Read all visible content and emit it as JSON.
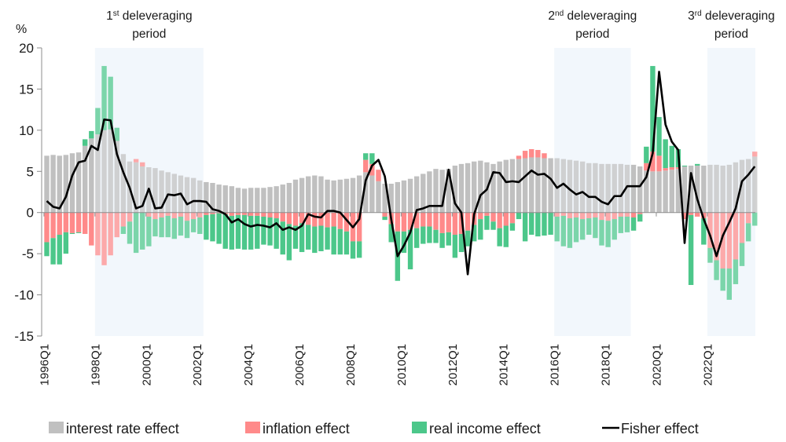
{
  "chart_data": {
    "type": "bar",
    "subtype": "stacked-bar-with-line",
    "ylabel": "%",
    "ylim": [
      -15,
      20
    ],
    "yticks": [
      20,
      15,
      10,
      5,
      0,
      -5,
      -10,
      -15
    ],
    "grid": false,
    "legend_position": "bottom",
    "x_tick_labels": [
      "1996Q1",
      "1998Q1",
      "2000Q1",
      "2002Q1",
      "2004Q1",
      "2006Q1",
      "2008Q1",
      "2010Q1",
      "2012Q1",
      "2014Q1",
      "2016Q1",
      "2018Q1",
      "2020Q1",
      "2022Q1"
    ],
    "start_quarter": "1996Q1",
    "end_quarter": "2023Q4",
    "periods": [
      {
        "label_ordinal": "1",
        "label_sup": "st",
        "label_line1": "deleveraging",
        "label_line2": "period",
        "start": "1998Q1",
        "end": "2002Q1"
      },
      {
        "label_ordinal": "2",
        "label_sup": "nd",
        "label_line1": "deleveraging",
        "label_line2": "period",
        "start": "2016Q1",
        "end": "2018Q4"
      },
      {
        "label_ordinal": "3",
        "label_sup": "rd",
        "label_line1": "deleveraging",
        "label_line2": "period",
        "start": "2022Q1",
        "end": "2023Q4"
      }
    ],
    "series": [
      {
        "name": "interest rate effect",
        "kind": "bar",
        "color": "#c0c0c0",
        "values": [
          6.9,
          7.0,
          6.9,
          7.0,
          7.2,
          7.3,
          8.1,
          9.0,
          9.5,
          10.0,
          10.1,
          8.7,
          7.1,
          6.2,
          6.1,
          5.6,
          5.5,
          5.4,
          5.1,
          4.9,
          4.7,
          4.5,
          4.3,
          4.2,
          3.9,
          3.7,
          3.6,
          3.4,
          3.3,
          3.2,
          3.0,
          2.9,
          3.0,
          3.0,
          3.0,
          3.1,
          3.2,
          3.4,
          3.6,
          4.0,
          4.2,
          4.4,
          4.5,
          4.4,
          4.0,
          3.9,
          4.0,
          4.1,
          4.2,
          4.5,
          4.9,
          4.5,
          3.8,
          3.5,
          3.5,
          3.7,
          3.9,
          4.1,
          4.4,
          4.7,
          5.0,
          5.3,
          5.2,
          5.3,
          5.7,
          5.9,
          6.0,
          6.2,
          6.3,
          6.1,
          5.9,
          6.2,
          6.4,
          6.5,
          6.5,
          6.6,
          6.7,
          6.7,
          6.6,
          6.6,
          6.6,
          6.5,
          6.4,
          6.3,
          6.2,
          6.0,
          6.0,
          5.9,
          5.9,
          5.9,
          5.9,
          5.8,
          5.8,
          5.6,
          5.1,
          5.0,
          5.0,
          5.1,
          5.2,
          5.3,
          5.6,
          5.7,
          5.7,
          5.7,
          5.8,
          5.8,
          5.7,
          5.8,
          6.1,
          6.4,
          6.5,
          6.8
        ]
      },
      {
        "name": "inflation effect",
        "kind": "bar",
        "color": "#ff8a8a",
        "values": [
          -3.6,
          -3.1,
          -2.7,
          -2.4,
          -2.5,
          -2.4,
          -2.6,
          -4.0,
          -5.2,
          -6.4,
          -5.2,
          -3.0,
          -1.7,
          -1.1,
          0.4,
          0.5,
          -0.5,
          -0.8,
          -0.6,
          -0.4,
          -0.7,
          -0.5,
          -1.0,
          -0.8,
          -0.6,
          -0.3,
          -0.2,
          -0.1,
          -0.2,
          -0.4,
          -0.3,
          -0.3,
          -0.4,
          -0.4,
          -0.5,
          -0.6,
          -0.7,
          -1.1,
          -1.4,
          -1.6,
          -1.3,
          -1.5,
          -1.7,
          -1.6,
          -1.8,
          -1.7,
          -2.0,
          -2.3,
          -3.5,
          -3.5,
          1.5,
          1.4,
          1.4,
          -0.5,
          -1.4,
          -2.3,
          -2.3,
          -2.1,
          -1.9,
          -1.7,
          -1.7,
          -2.1,
          -2.5,
          -2.4,
          -2.7,
          -2.6,
          -2.2,
          -1.5,
          -0.8,
          -0.4,
          -1.1,
          -1.9,
          -1.6,
          -1.3,
          0.4,
          0.9,
          1.0,
          0.9,
          0.6,
          0.0,
          -0.5,
          -0.4,
          -0.7,
          -0.6,
          -0.8,
          -0.7,
          -0.6,
          -0.9,
          -1.0,
          -0.8,
          -0.5,
          -0.5,
          -0.6,
          -0.2,
          0.9,
          2.4,
          1.9,
          0.3,
          0.3,
          0.2,
          -0.8,
          -0.3,
          -0.5,
          -0.7,
          -4.3,
          -5.8,
          -6.8,
          -6.8,
          -5.7,
          -3.7,
          -1.3,
          0.6
        ]
      },
      {
        "name": "real income effect",
        "kind": "bar",
        "color": "#4cc78a",
        "values": [
          -1.7,
          -3.2,
          -3.6,
          -2.6,
          -0.1,
          -0.1,
          0.8,
          0.9,
          3.2,
          7.8,
          6.4,
          1.6,
          -0.9,
          -2.7,
          -4.9,
          -4.5,
          -3.6,
          -2.1,
          -2.4,
          -2.6,
          -2.5,
          -2.3,
          -2.1,
          -1.6,
          -2.0,
          -3.0,
          -3.3,
          -3.7,
          -4.2,
          -4.1,
          -4.1,
          -4.2,
          -4.1,
          -4.0,
          -3.4,
          -3.4,
          -3.7,
          -4.0,
          -4.4,
          -2.8,
          -3.5,
          -3.0,
          -3.2,
          -3.1,
          -2.7,
          -3.4,
          -3.1,
          -2.8,
          -2.1,
          -2.0,
          0.8,
          1.3,
          0.0,
          -0.4,
          -2.2,
          -6.0,
          -2.6,
          -4.8,
          -2.4,
          -2.1,
          -2.0,
          -1.6,
          -1.8,
          -1.6,
          -2.8,
          -2.2,
          -1.9,
          -2.0,
          -2.5,
          -1.7,
          -1.0,
          -2.2,
          -2.6,
          -0.9,
          -0.8,
          -3.5,
          -2.7,
          -2.9,
          -2.8,
          -2.7,
          -3.0,
          -3.7,
          -3.6,
          -3.0,
          -2.5,
          -2.0,
          -2.5,
          -3.1,
          -3.2,
          -2.5,
          -2.0,
          -1.9,
          -1.6,
          -0.9,
          2.0,
          10.4,
          4.7,
          3.5,
          2.6,
          2.2,
          0.1,
          -8.5,
          0.2,
          -3.2,
          -1.8,
          -2.4,
          -2.7,
          -3.8,
          -3.0,
          -2.8,
          -2.2,
          -1.6
        ]
      },
      {
        "name": "Fisher effect",
        "kind": "line",
        "color": "#000000",
        "values": [
          1.4,
          0.7,
          0.5,
          1.9,
          4.5,
          6.1,
          6.3,
          8.1,
          7.6,
          11.3,
          11.2,
          7.1,
          4.9,
          3.0,
          0.5,
          0.8,
          2.9,
          0.5,
          0.6,
          2.2,
          2.1,
          2.3,
          1.0,
          1.4,
          1.4,
          1.3,
          0.4,
          0.2,
          -0.2,
          -1.2,
          -0.8,
          -1.4,
          -1.7,
          -1.5,
          -1.6,
          -1.8,
          -1.3,
          -2.1,
          -1.8,
          -2.1,
          -1.6,
          -0.2,
          -0.5,
          -0.6,
          0.2,
          0.2,
          0.0,
          -0.9,
          -1.8,
          -0.8,
          3.9,
          5.7,
          6.4,
          4.4,
          -0.8,
          -5.3,
          -4.0,
          -2.4,
          0.3,
          0.5,
          0.8,
          0.8,
          0.8,
          5.2,
          1.1,
          0.0,
          -7.5,
          -0.2,
          2.1,
          2.8,
          4.9,
          4.8,
          3.7,
          3.8,
          3.7,
          4.4,
          5.1,
          4.6,
          4.7,
          4.1,
          3.0,
          3.5,
          2.8,
          2.2,
          2.5,
          1.9,
          1.9,
          1.3,
          1.0,
          2.0,
          2.0,
          3.2,
          3.2,
          3.2,
          4.3,
          7.2,
          17.1,
          10.7,
          8.6,
          7.6,
          -3.7,
          4.8,
          1.6,
          -0.8,
          -2.8,
          -5.3,
          -2.8,
          -1.2,
          0.5,
          3.8,
          4.6,
          5.6
        ]
      }
    ],
    "legend": [
      {
        "label": "interest rate effect",
        "swatch": "box",
        "color": "#c0c0c0"
      },
      {
        "label": "inflation effect",
        "swatch": "box",
        "color": "#ff8a8a"
      },
      {
        "label": "real income effect",
        "swatch": "box",
        "color": "#4cc78a"
      },
      {
        "label": "Fisher effect",
        "swatch": "line",
        "color": "#000000"
      }
    ],
    "period_shade_color": "#f2f7fc",
    "light_bar_opacity_in_period": 0.72
  }
}
